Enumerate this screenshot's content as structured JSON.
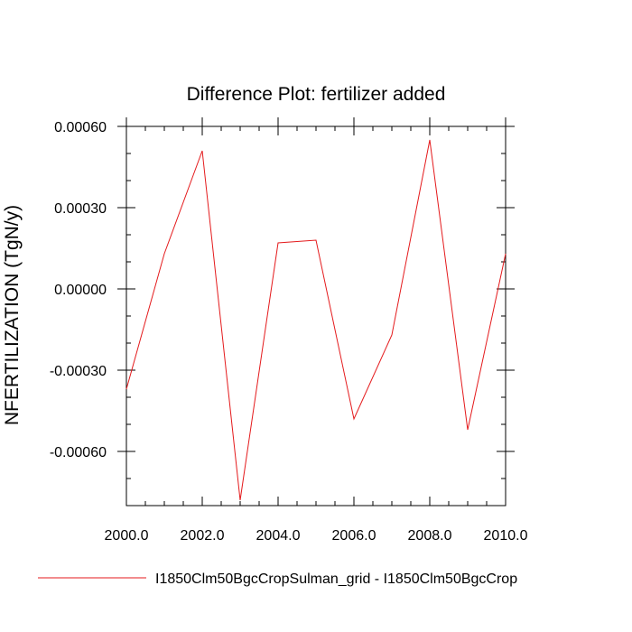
{
  "chart_data": {
    "type": "line",
    "title": "Difference Plot: fertilizer added",
    "xlabel": "",
    "ylabel": "NFERTILIZATION  (TgN/y)",
    "xlim": [
      2000.0,
      2010.0
    ],
    "ylim": [
      -0.0008,
      0.0006
    ],
    "x_ticks": [
      "2000.0",
      "2002.0",
      "2004.0",
      "2006.0",
      "2008.0",
      "2010.0"
    ],
    "y_ticks": [
      "0.00060",
      "0.00030",
      "0.00000",
      "-0.00030",
      "-0.00060"
    ],
    "series": [
      {
        "name": "I1850Clm50BgcCropSulman_grid - I1850Clm50BgcCrop",
        "color": "#e41a1c",
        "x": [
          2000,
          2001,
          2002,
          2003,
          2004,
          2005,
          2006,
          2007,
          2008,
          2009,
          2010
        ],
        "y": [
          -0.00037,
          0.00013,
          0.00051,
          -0.00078,
          0.00017,
          0.00018,
          -0.00048,
          -0.00017,
          0.00055,
          -0.00052,
          0.00013
        ]
      }
    ],
    "grid": false,
    "legend_position": "bottom"
  }
}
